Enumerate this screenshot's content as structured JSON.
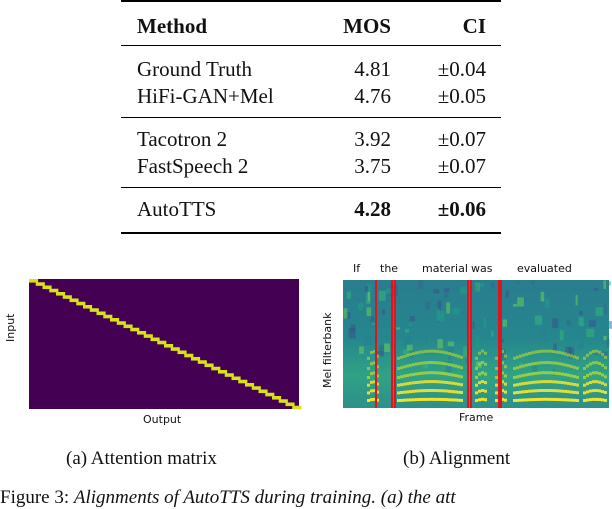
{
  "table": {
    "headers": [
      "Method",
      "MOS",
      "CI"
    ],
    "groups": [
      [
        {
          "method": "Ground Truth",
          "mos": "4.81",
          "ci": "±0.04"
        },
        {
          "method": "HiFi-GAN+Mel",
          "mos": "4.76",
          "ci": "±0.05"
        }
      ],
      [
        {
          "method": "Tacotron 2",
          "mos": "3.92",
          "ci": "±0.07"
        },
        {
          "method": "FastSpeech 2",
          "mos": "3.75",
          "ci": "±0.07"
        }
      ],
      [
        {
          "method": "AutoTTS",
          "mos": "4.28",
          "ci": "±0.06"
        }
      ]
    ]
  },
  "figures": {
    "attention": {
      "ylabel": "Input",
      "xlabel": "Output",
      "caption": "(a)  Attention matrix",
      "background_color": "#440154",
      "diagonal_color": "#d8e219"
    },
    "alignment": {
      "ylabel": "Mel filterbank",
      "xlabel": "Frame",
      "caption": "(b)  Alignment",
      "words": [
        "If",
        "the",
        "material",
        "was",
        "evaluated"
      ],
      "boundary_color": "#e0141e"
    }
  },
  "figure_caption": {
    "prefix": "Figure 3: ",
    "italic": "Alignments of AutoTTS during training. (a) the att"
  }
}
